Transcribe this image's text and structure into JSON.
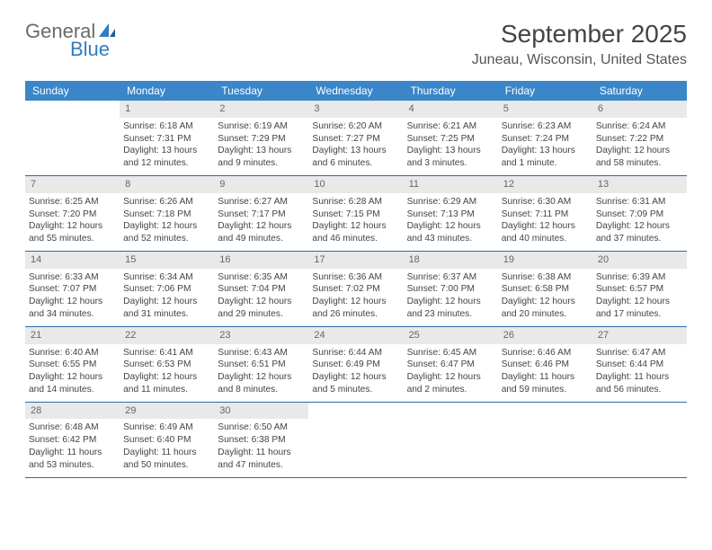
{
  "logo": {
    "word1": "General",
    "word2": "Blue"
  },
  "title": "September 2025",
  "location": "Juneau, Wisconsin, United States",
  "header_bg": "#3b86c8",
  "weekdays": [
    "Sunday",
    "Monday",
    "Tuesday",
    "Wednesday",
    "Thursday",
    "Friday",
    "Saturday"
  ],
  "weeks": [
    [
      {
        "num": "",
        "lines": []
      },
      {
        "num": "1",
        "lines": [
          "Sunrise: 6:18 AM",
          "Sunset: 7:31 PM",
          "Daylight: 13 hours",
          "and 12 minutes."
        ]
      },
      {
        "num": "2",
        "lines": [
          "Sunrise: 6:19 AM",
          "Sunset: 7:29 PM",
          "Daylight: 13 hours",
          "and 9 minutes."
        ]
      },
      {
        "num": "3",
        "lines": [
          "Sunrise: 6:20 AM",
          "Sunset: 7:27 PM",
          "Daylight: 13 hours",
          "and 6 minutes."
        ]
      },
      {
        "num": "4",
        "lines": [
          "Sunrise: 6:21 AM",
          "Sunset: 7:25 PM",
          "Daylight: 13 hours",
          "and 3 minutes."
        ]
      },
      {
        "num": "5",
        "lines": [
          "Sunrise: 6:23 AM",
          "Sunset: 7:24 PM",
          "Daylight: 13 hours",
          "and 1 minute."
        ]
      },
      {
        "num": "6",
        "lines": [
          "Sunrise: 6:24 AM",
          "Sunset: 7:22 PM",
          "Daylight: 12 hours",
          "and 58 minutes."
        ]
      }
    ],
    [
      {
        "num": "7",
        "lines": [
          "Sunrise: 6:25 AM",
          "Sunset: 7:20 PM",
          "Daylight: 12 hours",
          "and 55 minutes."
        ]
      },
      {
        "num": "8",
        "lines": [
          "Sunrise: 6:26 AM",
          "Sunset: 7:18 PM",
          "Daylight: 12 hours",
          "and 52 minutes."
        ]
      },
      {
        "num": "9",
        "lines": [
          "Sunrise: 6:27 AM",
          "Sunset: 7:17 PM",
          "Daylight: 12 hours",
          "and 49 minutes."
        ]
      },
      {
        "num": "10",
        "lines": [
          "Sunrise: 6:28 AM",
          "Sunset: 7:15 PM",
          "Daylight: 12 hours",
          "and 46 minutes."
        ]
      },
      {
        "num": "11",
        "lines": [
          "Sunrise: 6:29 AM",
          "Sunset: 7:13 PM",
          "Daylight: 12 hours",
          "and 43 minutes."
        ]
      },
      {
        "num": "12",
        "lines": [
          "Sunrise: 6:30 AM",
          "Sunset: 7:11 PM",
          "Daylight: 12 hours",
          "and 40 minutes."
        ]
      },
      {
        "num": "13",
        "lines": [
          "Sunrise: 6:31 AM",
          "Sunset: 7:09 PM",
          "Daylight: 12 hours",
          "and 37 minutes."
        ]
      }
    ],
    [
      {
        "num": "14",
        "lines": [
          "Sunrise: 6:33 AM",
          "Sunset: 7:07 PM",
          "Daylight: 12 hours",
          "and 34 minutes."
        ]
      },
      {
        "num": "15",
        "lines": [
          "Sunrise: 6:34 AM",
          "Sunset: 7:06 PM",
          "Daylight: 12 hours",
          "and 31 minutes."
        ]
      },
      {
        "num": "16",
        "lines": [
          "Sunrise: 6:35 AM",
          "Sunset: 7:04 PM",
          "Daylight: 12 hours",
          "and 29 minutes."
        ]
      },
      {
        "num": "17",
        "lines": [
          "Sunrise: 6:36 AM",
          "Sunset: 7:02 PM",
          "Daylight: 12 hours",
          "and 26 minutes."
        ]
      },
      {
        "num": "18",
        "lines": [
          "Sunrise: 6:37 AM",
          "Sunset: 7:00 PM",
          "Daylight: 12 hours",
          "and 23 minutes."
        ]
      },
      {
        "num": "19",
        "lines": [
          "Sunrise: 6:38 AM",
          "Sunset: 6:58 PM",
          "Daylight: 12 hours",
          "and 20 minutes."
        ]
      },
      {
        "num": "20",
        "lines": [
          "Sunrise: 6:39 AM",
          "Sunset: 6:57 PM",
          "Daylight: 12 hours",
          "and 17 minutes."
        ]
      }
    ],
    [
      {
        "num": "21",
        "lines": [
          "Sunrise: 6:40 AM",
          "Sunset: 6:55 PM",
          "Daylight: 12 hours",
          "and 14 minutes."
        ]
      },
      {
        "num": "22",
        "lines": [
          "Sunrise: 6:41 AM",
          "Sunset: 6:53 PM",
          "Daylight: 12 hours",
          "and 11 minutes."
        ]
      },
      {
        "num": "23",
        "lines": [
          "Sunrise: 6:43 AM",
          "Sunset: 6:51 PM",
          "Daylight: 12 hours",
          "and 8 minutes."
        ]
      },
      {
        "num": "24",
        "lines": [
          "Sunrise: 6:44 AM",
          "Sunset: 6:49 PM",
          "Daylight: 12 hours",
          "and 5 minutes."
        ]
      },
      {
        "num": "25",
        "lines": [
          "Sunrise: 6:45 AM",
          "Sunset: 6:47 PM",
          "Daylight: 12 hours",
          "and 2 minutes."
        ]
      },
      {
        "num": "26",
        "lines": [
          "Sunrise: 6:46 AM",
          "Sunset: 6:46 PM",
          "Daylight: 11 hours",
          "and 59 minutes."
        ]
      },
      {
        "num": "27",
        "lines": [
          "Sunrise: 6:47 AM",
          "Sunset: 6:44 PM",
          "Daylight: 11 hours",
          "and 56 minutes."
        ]
      }
    ],
    [
      {
        "num": "28",
        "lines": [
          "Sunrise: 6:48 AM",
          "Sunset: 6:42 PM",
          "Daylight: 11 hours",
          "and 53 minutes."
        ]
      },
      {
        "num": "29",
        "lines": [
          "Sunrise: 6:49 AM",
          "Sunset: 6:40 PM",
          "Daylight: 11 hours",
          "and 50 minutes."
        ]
      },
      {
        "num": "30",
        "lines": [
          "Sunrise: 6:50 AM",
          "Sunset: 6:38 PM",
          "Daylight: 11 hours",
          "and 47 minutes."
        ]
      },
      {
        "num": "",
        "lines": []
      },
      {
        "num": "",
        "lines": []
      },
      {
        "num": "",
        "lines": []
      },
      {
        "num": "",
        "lines": []
      }
    ]
  ]
}
